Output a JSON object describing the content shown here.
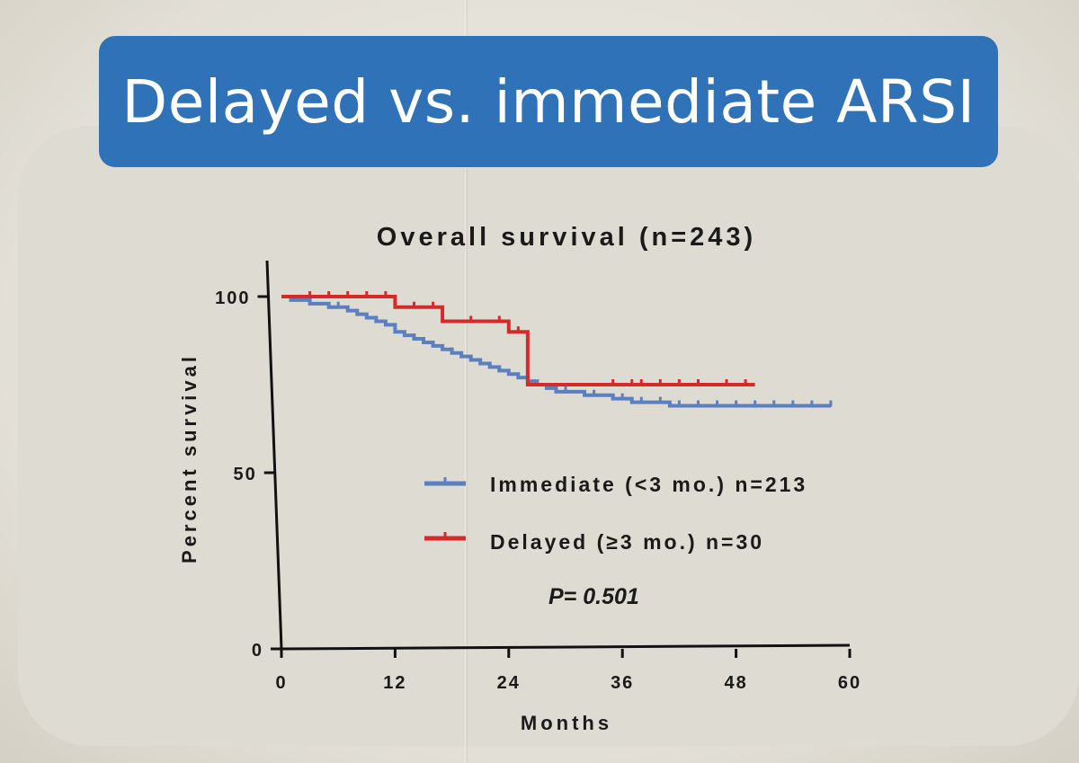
{
  "slide": {
    "title": "Delayed vs. immediate ARSI",
    "title_bar_color": "#2f72b8"
  },
  "chart_data": {
    "type": "line",
    "title": "Overall survival (n=243)",
    "xlabel": "Months",
    "ylabel": "Percent survival",
    "xlim": [
      0,
      60
    ],
    "ylim": [
      0,
      100
    ],
    "x_ticks": [
      0,
      12,
      24,
      36,
      48,
      60
    ],
    "y_ticks": [
      0,
      50,
      100
    ],
    "grid": false,
    "legend_position": "center-right",
    "annotation": "P= 0.501",
    "series": [
      {
        "name": "Immediate (<3 mo.) n=213",
        "color": "#5b7fbf",
        "step": true,
        "x": [
          0,
          1,
          2,
          3,
          4,
          5,
          6,
          7,
          8,
          9,
          10,
          11,
          12,
          13,
          14,
          15,
          16,
          17,
          18,
          19,
          20,
          21,
          22,
          23,
          24,
          25,
          26,
          27,
          28,
          29,
          30,
          31,
          32,
          33,
          35,
          37,
          39,
          41,
          45,
          50,
          55,
          58
        ],
        "y": [
          100,
          99,
          99,
          98,
          98,
          97,
          97,
          96,
          95,
          94,
          93,
          92,
          90,
          89,
          88,
          87,
          86,
          85,
          84,
          83,
          82,
          81,
          80,
          79,
          78,
          77,
          76,
          75,
          74,
          73,
          73,
          73,
          72,
          72,
          71,
          70,
          70,
          69,
          69,
          69,
          69,
          69
        ],
        "censor_x": [
          2,
          6,
          10,
          14,
          18,
          22,
          26,
          30,
          33,
          36,
          38,
          40,
          42,
          44,
          46,
          48,
          50,
          52,
          54,
          56,
          58
        ]
      },
      {
        "name": "Delayed (≥3 mo.) n=30",
        "color": "#d42a2a",
        "step": true,
        "x": [
          0,
          3,
          12,
          17,
          24,
          26,
          50
        ],
        "y": [
          100,
          100,
          97,
          93,
          90,
          75,
          75
        ],
        "censor_x": [
          3,
          5,
          7,
          9,
          11,
          14,
          16,
          20,
          23,
          25,
          35,
          37,
          38,
          40,
          42,
          44,
          47,
          49
        ]
      }
    ]
  }
}
